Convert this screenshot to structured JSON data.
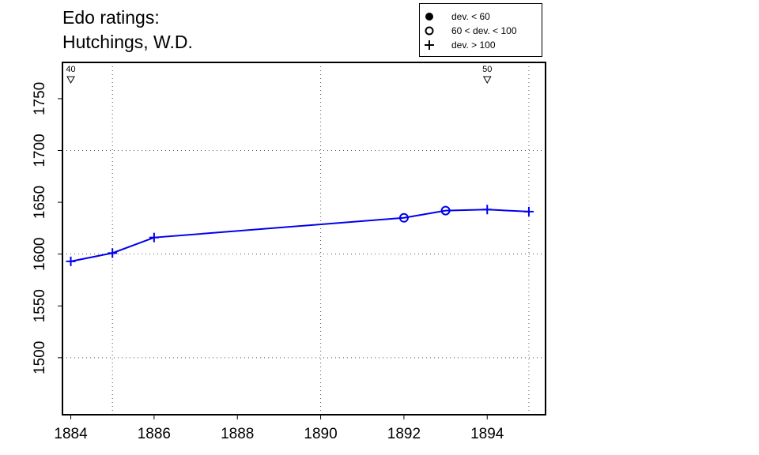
{
  "title": [
    "Edo ratings:",
    "Hutchings, W.D."
  ],
  "legend": [
    {
      "symbol": "filled-circle",
      "label": "dev. < 60"
    },
    {
      "symbol": "open-circle",
      "label": "60 < dev. < 100"
    },
    {
      "symbol": "plus",
      "label": "dev. > 100"
    }
  ],
  "chart_data": {
    "type": "line",
    "title": "Edo ratings: Hutchings, W.D.",
    "xlabel": "",
    "ylabel": "",
    "xlim": [
      1883.8,
      1895.4
    ],
    "ylim": [
      1445,
      1785
    ],
    "x_ticks": [
      1884,
      1886,
      1888,
      1890,
      1892,
      1894
    ],
    "y_ticks": [
      1500,
      1550,
      1600,
      1650,
      1700,
      1750
    ],
    "x_gridlines": [
      1885,
      1890,
      1895
    ],
    "y_gridlines": [
      1500,
      1600,
      1700
    ],
    "grid": "dotted",
    "color": "#0000ee",
    "series": [
      {
        "x": [
          1884,
          1885,
          1886,
          1892,
          1893,
          1894,
          1895
        ],
        "y": [
          1593,
          1601,
          1616,
          1635,
          1642,
          1643,
          1641
        ],
        "deviation_class": [
          "plus",
          "plus",
          "plus",
          "open-circle",
          "open-circle",
          "plus",
          "plus"
        ]
      }
    ],
    "annotations": [
      {
        "x": 1884,
        "label": "40",
        "marker": "down-triangle"
      },
      {
        "x": 1894,
        "label": "50",
        "marker": "down-triangle"
      }
    ]
  }
}
